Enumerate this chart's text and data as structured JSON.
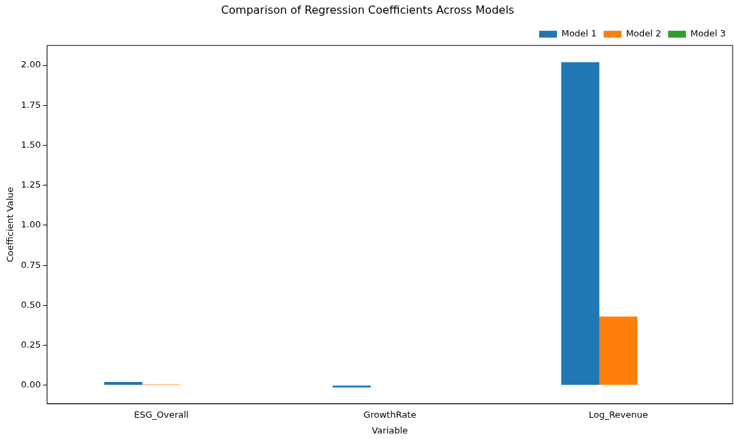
{
  "chart_data": {
    "type": "bar",
    "title": "Comparison of Regression Coefficients Across Models",
    "xlabel": "Variable",
    "ylabel": "Coefficient Value",
    "categories": [
      "ESG_Overall",
      "GrowthRate",
      "Log_Revenue"
    ],
    "series": [
      {
        "name": "Model 1",
        "color": "#1f77b4",
        "values": [
          0.021,
          -0.014,
          2.02
        ]
      },
      {
        "name": "Model 2",
        "color": "#ff7f0e",
        "values": [
          0.006,
          null,
          0.43
        ]
      },
      {
        "name": "Model 3",
        "color": "#2ca02c",
        "values": [
          null,
          null,
          null
        ]
      }
    ],
    "ylim": [
      -0.116,
      2.124
    ],
    "yticks": [
      {
        "value": 0,
        "label": "0.00"
      },
      {
        "value": 0.25,
        "label": "0.25"
      },
      {
        "value": 0.5,
        "label": "0.50"
      },
      {
        "value": 0.75,
        "label": "0.75"
      },
      {
        "value": 1,
        "label": "1.00"
      },
      {
        "value": 1.25,
        "label": "1.25"
      },
      {
        "value": 1.5,
        "label": "1.50"
      },
      {
        "value": 1.75,
        "label": "1.75"
      },
      {
        "value": 2,
        "label": "2.00"
      }
    ],
    "grid": false,
    "legend": "top right"
  }
}
